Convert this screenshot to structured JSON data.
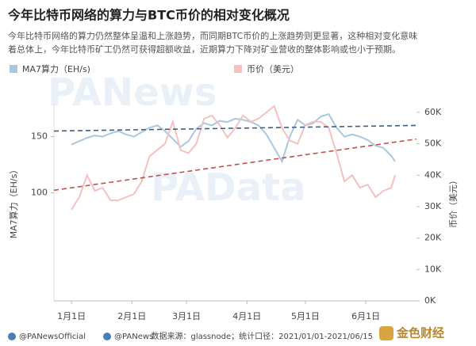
{
  "chart_data": {
    "type": "line",
    "title": "今年比特币网络的算力与BTC币价的相对变化概况",
    "subtitle": [
      "今年比特币网络的算力仍然整体呈温和上涨趋势，而同期BTC币价的上涨趋势则更显著，这种相对变化意味",
      "着总体上，今年比特币矿工仍然可获得超额收益，近期算力下降对矿业营收的整体影响或也小于预期。"
    ],
    "y_label": "MA7算力（EH/s）",
    "y2_label": "币价（美元）",
    "watermarks": [
      "PANews",
      "PAData"
    ],
    "x": [
      0,
      4,
      8,
      12,
      16,
      20,
      24,
      28,
      32,
      36,
      40,
      44,
      48,
      52,
      56,
      60,
      64,
      68,
      72,
      76,
      80,
      84,
      88,
      92,
      96,
      100,
      104,
      108,
      112,
      116,
      120,
      124,
      128,
      132,
      136,
      140,
      144,
      148,
      152,
      156,
      160,
      164,
      166
    ],
    "xlim": [
      -9,
      177
    ],
    "xticks": [
      {
        "value": 0,
        "label": "1月1日"
      },
      {
        "value": 31,
        "label": "2月1日"
      },
      {
        "value": 59,
        "label": "3月1日"
      },
      {
        "value": 90,
        "label": "4月1日"
      },
      {
        "value": 120,
        "label": "5月1日"
      },
      {
        "value": 151,
        "label": "6月1日"
      }
    ],
    "ylim": [
      4,
      180
    ],
    "yticks": [
      100,
      150
    ],
    "y2lim": [
      0,
      63000
    ],
    "y2ticks": [
      {
        "value": 0,
        "label": "0K"
      },
      {
        "value": 10000,
        "label": "10K"
      },
      {
        "value": 20000,
        "label": "20K"
      },
      {
        "value": 30000,
        "label": "30K"
      },
      {
        "value": 40000,
        "label": "40K"
      },
      {
        "value": 50000,
        "label": "50K"
      },
      {
        "value": 60000,
        "label": "60K"
      }
    ],
    "legend": "top-left",
    "series": [
      {
        "name": "MA7算力（EH/s)",
        "color": "#a9c8de",
        "axis": "y",
        "values": [
          143,
          146,
          149,
          151,
          150,
          153,
          155,
          152,
          150,
          154,
          158,
          160,
          155,
          148,
          141,
          146,
          157,
          162,
          160,
          164,
          163,
          166,
          165,
          163,
          160,
          152,
          140,
          128,
          150,
          165,
          160,
          162,
          168,
          170,
          158,
          150,
          152,
          150,
          147,
          142,
          140,
          133,
          128
        ]
      },
      {
        "name": "币价（美元）",
        "color": "#f4c0c0",
        "axis": "y2",
        "values": [
          29000,
          33000,
          40000,
          35000,
          36000,
          32000,
          32000,
          33000,
          34000,
          38000,
          46000,
          48000,
          50000,
          57000,
          48000,
          47000,
          50000,
          58000,
          59000,
          56000,
          52000,
          55000,
          59000,
          57000,
          58000,
          60000,
          62000,
          55000,
          51000,
          50000,
          56000,
          57000,
          57000,
          55000,
          47000,
          38000,
          40000,
          36000,
          37000,
          33000,
          35000,
          36000,
          40000
        ]
      }
    ],
    "trendlines": [
      {
        "color": "#3f5f86",
        "axis": "y",
        "values": [
          155,
          160
        ]
      },
      {
        "color": "#c0504d",
        "axis": "y2",
        "values": [
          35200,
          51500
        ]
      }
    ]
  },
  "footer": {
    "accounts": [
      "@PANewsOfficial",
      "@PANews"
    ],
    "source": "数据来源：glassnode；统计口径：2021/01/01-2021/06/15",
    "logo": "金色财经"
  }
}
